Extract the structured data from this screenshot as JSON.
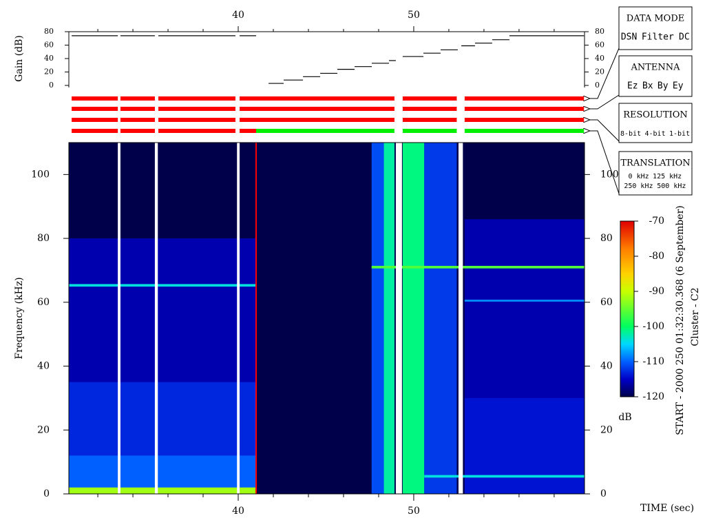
{
  "time_axis": {
    "label": "TIME (sec)",
    "xlim": [
      30.35,
      59.73
    ],
    "xticks": [
      40,
      50
    ],
    "xminor": [
      32,
      34,
      36,
      38,
      42,
      44,
      46,
      48,
      52,
      54,
      56,
      58
    ]
  },
  "chart_data": [
    {
      "type": "step",
      "ylabel": "Gain (dB)",
      "ylim": [
        0,
        80
      ],
      "yticks": [
        0,
        20,
        40,
        60,
        80
      ],
      "color": "#000000",
      "x_start": [
        30.51,
        33.29,
        35.45,
        40.08,
        41.73,
        42.59,
        43.69,
        44.67,
        45.65,
        46.63,
        47.61,
        48.59,
        49.37,
        50.55,
        51.53,
        52.71,
        53.49,
        54.47,
        55.45
      ],
      "x_end": [
        33.14,
        35.25,
        39.84,
        41.02,
        42.59,
        43.69,
        44.67,
        45.65,
        46.63,
        47.61,
        48.59,
        48.98,
        50.55,
        51.53,
        52.51,
        53.49,
        54.47,
        55.45,
        59.7
      ],
      "values": [
        74,
        74,
        74,
        74,
        3,
        8,
        13,
        18,
        24,
        28,
        33,
        37,
        43,
        48,
        53,
        59,
        63,
        68,
        74
      ]
    },
    {
      "type": "status",
      "rows": [
        {
          "x_start": [
            30.51,
            33.29,
            35.45,
            40.08,
            49.37,
            52.9
          ],
          "x_end": [
            33.14,
            35.25,
            39.84,
            48.9,
            52.45,
            59.7
          ],
          "colors": [
            "#ff0000",
            "#ff0000",
            "#ff0000",
            "#ff0000",
            "#ff0000",
            "#ff0000"
          ]
        },
        {
          "x_start": [
            30.51,
            33.29,
            35.45,
            40.08,
            49.37,
            52.9
          ],
          "x_end": [
            33.14,
            35.25,
            39.84,
            48.9,
            52.45,
            59.7
          ],
          "colors": [
            "#ff0000",
            "#ff0000",
            "#ff0000",
            "#ff0000",
            "#ff0000",
            "#ff0000"
          ]
        },
        {
          "x_start": [
            30.51,
            33.29,
            35.45,
            40.08,
            49.37,
            52.9
          ],
          "x_end": [
            33.14,
            35.25,
            39.84,
            48.9,
            52.45,
            59.7
          ],
          "colors": [
            "#ff0000",
            "#ff0000",
            "#ff0000",
            "#ff0000",
            "#ff0000",
            "#ff0000"
          ]
        },
        {
          "x_start": [
            30.51,
            33.29,
            35.45,
            40.08,
            41.02,
            49.37,
            52.9
          ],
          "x_end": [
            33.14,
            35.25,
            39.84,
            41.02,
            48.9,
            52.45,
            59.7
          ],
          "colors": [
            "#ff0000",
            "#ff0000",
            "#ff0000",
            "#ff0000",
            "#00ee00",
            "#00ee00",
            "#00ee00"
          ]
        }
      ]
    },
    {
      "type": "heatmap",
      "ylabel": "Frequency (kHz)",
      "ylim": [
        0,
        110
      ],
      "yticks": [
        0,
        20,
        40,
        60,
        80,
        100
      ],
      "background": -120,
      "regions": [
        {
          "x": [
            30.35,
            41.02
          ],
          "y": [
            0,
            80
          ],
          "value": -116
        },
        {
          "x": [
            30.35,
            41.02
          ],
          "y": [
            0,
            35
          ],
          "value": -113
        },
        {
          "x": [
            30.35,
            41.02
          ],
          "y": [
            0,
            12
          ],
          "value": -110
        },
        {
          "x": [
            30.35,
            41.02
          ],
          "y": [
            0,
            2
          ],
          "value": -92
        },
        {
          "x": [
            30.35,
            41.02
          ],
          "y": [
            64.9,
            65.7
          ],
          "value": -104
        },
        {
          "x": [
            47.6,
            48.9
          ],
          "y": [
            0,
            110
          ],
          "value": -111
        },
        {
          "x": [
            48.3,
            48.9
          ],
          "y": [
            0,
            110
          ],
          "value": -102
        },
        {
          "x": [
            49.37,
            50.6
          ],
          "y": [
            0,
            110
          ],
          "value": -101
        },
        {
          "x": [
            50.6,
            52.45
          ],
          "y": [
            0,
            110
          ],
          "value": -112
        },
        {
          "x": [
            52.9,
            59.73
          ],
          "y": [
            0,
            86
          ],
          "value": -116
        },
        {
          "x": [
            52.9,
            59.73
          ],
          "y": [
            0,
            30
          ],
          "value": -114
        },
        {
          "x": [
            47.6,
            59.73
          ],
          "y": [
            70.6,
            71.4
          ],
          "value": -96
        },
        {
          "x": [
            50.6,
            59.73
          ],
          "y": [
            5.1,
            5.9
          ],
          "value": -104
        },
        {
          "x": [
            52.9,
            59.73
          ],
          "y": [
            60.2,
            60.8
          ],
          "value": -108
        }
      ],
      "gaps": [
        {
          "x": [
            33.14,
            33.29
          ]
        },
        {
          "x": [
            35.25,
            35.42
          ]
        },
        {
          "x": [
            39.93,
            40.08
          ]
        },
        {
          "x": [
            48.98,
            49.33
          ]
        },
        {
          "x": [
            52.55,
            52.8
          ]
        }
      ],
      "markers": [
        {
          "x": 41.02,
          "color": "#ff0000"
        }
      ],
      "colorbar": {
        "label": "dB",
        "lim": [
          -120,
          -70
        ],
        "ticks": [
          -70,
          -80,
          -90,
          -100,
          -110,
          -120
        ],
        "stops": [
          [
            -120,
            "#00004a"
          ],
          [
            -115,
            "#0000c8"
          ],
          [
            -110,
            "#0060ff"
          ],
          [
            -105,
            "#00d8ff"
          ],
          [
            -100,
            "#00ff60"
          ],
          [
            -90,
            "#c8ff00"
          ],
          [
            -85,
            "#ffd200"
          ],
          [
            -78,
            "#ff8000"
          ],
          [
            -70,
            "#e00000"
          ]
        ]
      }
    }
  ],
  "side_text": [
    "START - 2000 250 01:32:30.368 (6 September)",
    "Cluster - C2"
  ],
  "legends": [
    {
      "title": "DATA MODE",
      "items": [
        {
          "label": "DSN",
          "color": "#ff0000"
        },
        {
          "label": "Filter",
          "color": "#00cc00"
        },
        {
          "label": "DC",
          "color": "#0000ff"
        }
      ]
    },
    {
      "title": "ANTENNA",
      "items": [
        {
          "label": "Ez",
          "color": "#ff0000"
        },
        {
          "label": "Bx",
          "color": "#00cc00"
        },
        {
          "label": "By",
          "color": "#0000ff"
        },
        {
          "label": "Ey",
          "color": "#000000"
        }
      ]
    },
    {
      "title": "RESOLUTION",
      "items": [
        {
          "label": "8-bit",
          "color": "#ff0000"
        },
        {
          "label": "4-bit",
          "color": "#00cc00"
        },
        {
          "label": "1-bit",
          "color": "#0000ff"
        }
      ]
    },
    {
      "title": "TRANSLATION",
      "items": [
        {
          "label": "0 kHz",
          "color": "#ff0000"
        },
        {
          "label": "125 kHz",
          "color": "#00cc00"
        },
        {
          "label": "250 kHz",
          "color": "#0000ff"
        },
        {
          "label": "500 kHz",
          "color": "#000000"
        }
      ]
    }
  ]
}
